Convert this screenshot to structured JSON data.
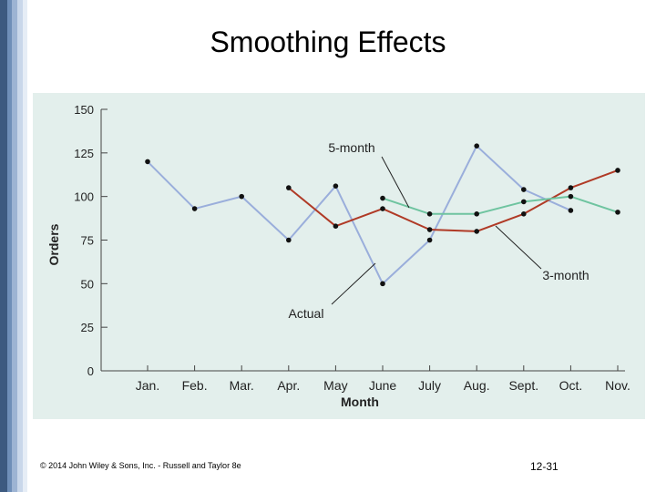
{
  "slide": {
    "title": "Smoothing Effects",
    "footer_left": "© 2014 John Wiley & Sons, Inc. - Russell and Taylor 8e",
    "footer_right": "12-31"
  },
  "chart_data": {
    "type": "line",
    "title": "",
    "xlabel": "Month",
    "ylabel": "Orders",
    "categories": [
      "Jan.",
      "Feb.",
      "Mar.",
      "Apr.",
      "May",
      "June",
      "July",
      "Aug.",
      "Sept.",
      "Oct.",
      "Nov."
    ],
    "ylim": [
      0,
      150
    ],
    "yticks": [
      0,
      25,
      50,
      75,
      100,
      125,
      150
    ],
    "series": [
      {
        "name": "Actual",
        "color": "#9aaedb",
        "values": [
          120,
          93,
          100,
          75,
          106,
          50,
          75,
          129,
          104,
          92,
          null
        ]
      },
      {
        "name": "3-month",
        "color": "#b03a26",
        "values": [
          null,
          null,
          null,
          105,
          83,
          93,
          81,
          80,
          90,
          105,
          115
        ]
      },
      {
        "name": "5-month",
        "color": "#6fc4a0",
        "values": [
          null,
          null,
          null,
          null,
          null,
          99,
          90,
          90,
          97,
          100,
          91
        ]
      }
    ],
    "annotations": [
      {
        "text": "5-month",
        "series": "5-month"
      },
      {
        "text": "3-month",
        "series": "3-month"
      },
      {
        "text": "Actual",
        "series": "Actual"
      }
    ]
  }
}
